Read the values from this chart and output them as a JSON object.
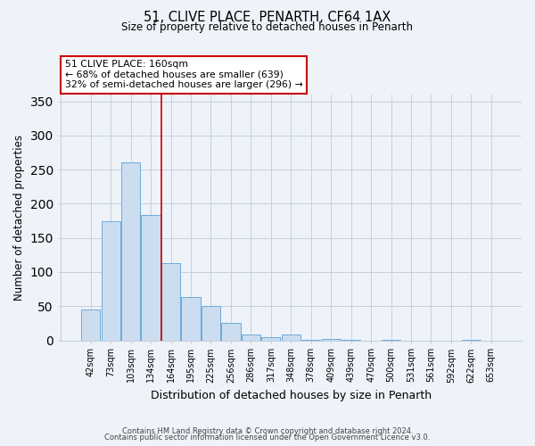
{
  "title_line1": "51, CLIVE PLACE, PENARTH, CF64 1AX",
  "title_line2": "Size of property relative to detached houses in Penarth",
  "xlabel": "Distribution of detached houses by size in Penarth",
  "ylabel": "Number of detached properties",
  "bar_labels": [
    "42sqm",
    "73sqm",
    "103sqm",
    "134sqm",
    "164sqm",
    "195sqm",
    "225sqm",
    "256sqm",
    "286sqm",
    "317sqm",
    "348sqm",
    "378sqm",
    "409sqm",
    "439sqm",
    "470sqm",
    "500sqm",
    "531sqm",
    "561sqm",
    "592sqm",
    "622sqm",
    "653sqm"
  ],
  "bar_values": [
    45,
    175,
    261,
    184,
    113,
    64,
    50,
    25,
    8,
    5,
    9,
    1,
    2,
    1,
    0,
    1,
    0,
    0,
    0,
    1,
    0
  ],
  "bar_color": "#ccddf0",
  "bar_edge_color": "#6aabda",
  "vline_x_index": 4,
  "vline_color": "#cc0000",
  "annotation_title": "51 CLIVE PLACE: 160sqm",
  "annotation_line1": "← 68% of detached houses are smaller (639)",
  "annotation_line2": "32% of semi-detached houses are larger (296) →",
  "annotation_box_edgecolor": "#cc0000",
  "ylim": [
    0,
    360
  ],
  "yticks": [
    0,
    50,
    100,
    150,
    200,
    250,
    300,
    350
  ],
  "footnote1": "Contains HM Land Registry data © Crown copyright and database right 2024.",
  "footnote2": "Contains public sector information licensed under the Open Government Licence v3.0.",
  "background_color": "#eef2f9"
}
